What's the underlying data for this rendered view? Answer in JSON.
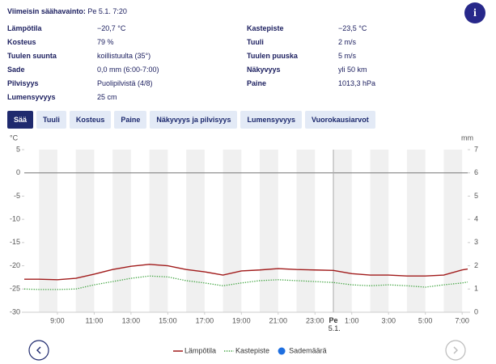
{
  "header": {
    "label": "Viimeisin säähavainto:",
    "time": "Pe 5.1. 7:20"
  },
  "observations": {
    "left": [
      {
        "label": "Lämpötila",
        "value": "−20,7 °C"
      },
      {
        "label": "Kosteus",
        "value": "79 %"
      },
      {
        "label": "Tuulen suunta",
        "value": "koillistuulta (35°)"
      },
      {
        "label": "Sade",
        "value": "0,0 mm (6:00-7:00)"
      },
      {
        "label": "Pilvisyys",
        "value": "Puolipilvistä (4/8)"
      },
      {
        "label": "Lumensyvyys",
        "value": "25 cm"
      }
    ],
    "right": [
      {
        "label": "Kastepiste",
        "value": "−23,5 °C"
      },
      {
        "label": "Tuuli",
        "value": "2 m/s"
      },
      {
        "label": "Tuulen puuska",
        "value": "5 m/s"
      },
      {
        "label": "Näkyvyys",
        "value": "yli 50 km"
      },
      {
        "label": "Paine",
        "value": "1013,3 hPa"
      }
    ]
  },
  "tabs": [
    {
      "label": "Sää",
      "active": true
    },
    {
      "label": "Tuuli",
      "active": false
    },
    {
      "label": "Kosteus",
      "active": false
    },
    {
      "label": "Paine",
      "active": false
    },
    {
      "label": "Näkyvyys ja pilvisyys",
      "active": false
    },
    {
      "label": "Lumensyvyys",
      "active": false
    },
    {
      "label": "Vuorokausiarvot",
      "active": false
    }
  ],
  "chart_data": {
    "type": "line",
    "y_label": "°C",
    "y2_label": "mm",
    "x": [
      7.2,
      8,
      9,
      10,
      11,
      12,
      13,
      14,
      15,
      16,
      17,
      18,
      19,
      20,
      21,
      22,
      23,
      24,
      25,
      26,
      27,
      28,
      29,
      30,
      31,
      31.3
    ],
    "xlim": [
      7.2,
      31.3
    ],
    "xticks": [
      {
        "value": 9,
        "label": "9:00"
      },
      {
        "value": 11,
        "label": "11:00"
      },
      {
        "value": 13,
        "label": "13:00"
      },
      {
        "value": 15,
        "label": "15:00"
      },
      {
        "value": 17,
        "label": "17:00"
      },
      {
        "value": 19,
        "label": "19:00"
      },
      {
        "value": 21,
        "label": "21:00"
      },
      {
        "value": 23,
        "label": "23:00"
      },
      {
        "value": 24,
        "label": "Pe 5.1."
      },
      {
        "value": 25,
        "label": "1:00"
      },
      {
        "value": 27,
        "label": "3:00"
      },
      {
        "value": 29,
        "label": "5:00"
      },
      {
        "value": 31,
        "label": "7:00"
      }
    ],
    "ylim": [
      -30,
      5
    ],
    "yticks": [
      5,
      0,
      -5,
      -10,
      -15,
      -20,
      -25,
      -30
    ],
    "y2lim": [
      0,
      7
    ],
    "y2ticks": [
      7,
      6,
      5,
      4,
      3,
      2,
      1,
      0
    ],
    "series": [
      {
        "name": "Lämpötila",
        "color": "#a11b1b",
        "dash": "solid",
        "values": [
          -22.9,
          -22.9,
          -23.0,
          -22.7,
          -21.8,
          -20.8,
          -20.1,
          -19.7,
          -20.0,
          -20.8,
          -21.3,
          -22.0,
          -21.1,
          -20.9,
          -20.6,
          -20.8,
          -20.9,
          -21.0,
          -21.7,
          -22.0,
          -22.0,
          -22.2,
          -22.2,
          -22.0,
          -20.9,
          -20.7
        ]
      },
      {
        "name": "Kastepiste",
        "color": "#3fa33f",
        "dash": "dotted",
        "values": [
          -25.0,
          -25.1,
          -25.1,
          -25.0,
          -24.1,
          -23.4,
          -22.7,
          -22.2,
          -22.4,
          -23.2,
          -23.7,
          -24.3,
          -23.7,
          -23.2,
          -23.0,
          -23.2,
          -23.4,
          -23.6,
          -24.1,
          -24.3,
          -24.1,
          -24.3,
          -24.6,
          -24.1,
          -23.7,
          -23.5
        ]
      },
      {
        "name": "Sademäärä",
        "color": "#1e6fe0",
        "type": "bar",
        "axis": "y2",
        "values": [
          0,
          0,
          0,
          0,
          0,
          0,
          0,
          0,
          0,
          0,
          0,
          0,
          0,
          0,
          0,
          0,
          0,
          0,
          0,
          0,
          0,
          0,
          0,
          0,
          0,
          0
        ]
      }
    ]
  }
}
